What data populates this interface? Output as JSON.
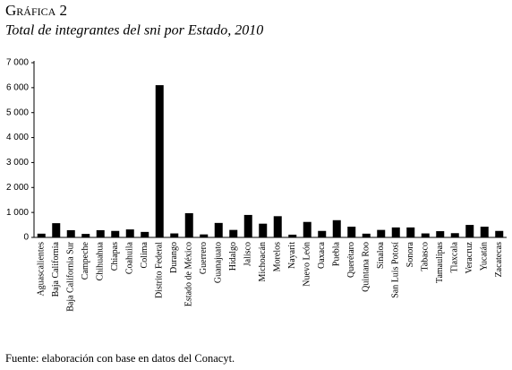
{
  "chart_data": {
    "type": "bar",
    "title": "Gráfica 2",
    "subtitle": "Total de integrantes del sni por Estado, 2010",
    "source": "Fuente: elaboración con base en datos del Conacyt.",
    "categories": [
      "Aguascalientes",
      "Baja California",
      "Baja California Sur",
      "Campeche",
      "Chihuahua",
      "Chiapas",
      "Coahuila",
      "Colima",
      "Distrito Federal",
      "Durango",
      "Estado de México",
      "Guerrero",
      "Guanajuato",
      "Hidalgo",
      "Jalisco",
      "Michoacán",
      "Morelos",
      "Nayarit",
      "Nuevo León",
      "Oaxaca",
      "Puebla",
      "Querétaro",
      "Quintana Roo",
      "Sinaloa",
      "San Luis Potosí",
      "Sonora",
      "Tabasco",
      "Tamaulipas",
      "Tlaxcala",
      "Veracruz",
      "Yucatán",
      "Zacatecas"
    ],
    "values": [
      150,
      570,
      290,
      140,
      290,
      260,
      320,
      220,
      6100,
      160,
      970,
      120,
      580,
      300,
      900,
      550,
      850,
      110,
      620,
      260,
      690,
      430,
      150,
      300,
      400,
      400,
      160,
      250,
      170,
      500,
      430,
      260
    ],
    "color": "#000000",
    "ylim": [
      0,
      7000
    ],
    "yticks": [
      0,
      {
        "value": 1000,
        "label": "1 000"
      },
      {
        "value": 2000,
        "label": "2 000"
      },
      {
        "value": 3000,
        "label": "3 000"
      },
      {
        "value": 4000,
        "label": "4 000"
      },
      {
        "value": 5000,
        "label": "5 000"
      },
      {
        "value": 6000,
        "label": "6 000"
      },
      {
        "value": 7000,
        "label": "7 000"
      }
    ],
    "grid": false
  }
}
